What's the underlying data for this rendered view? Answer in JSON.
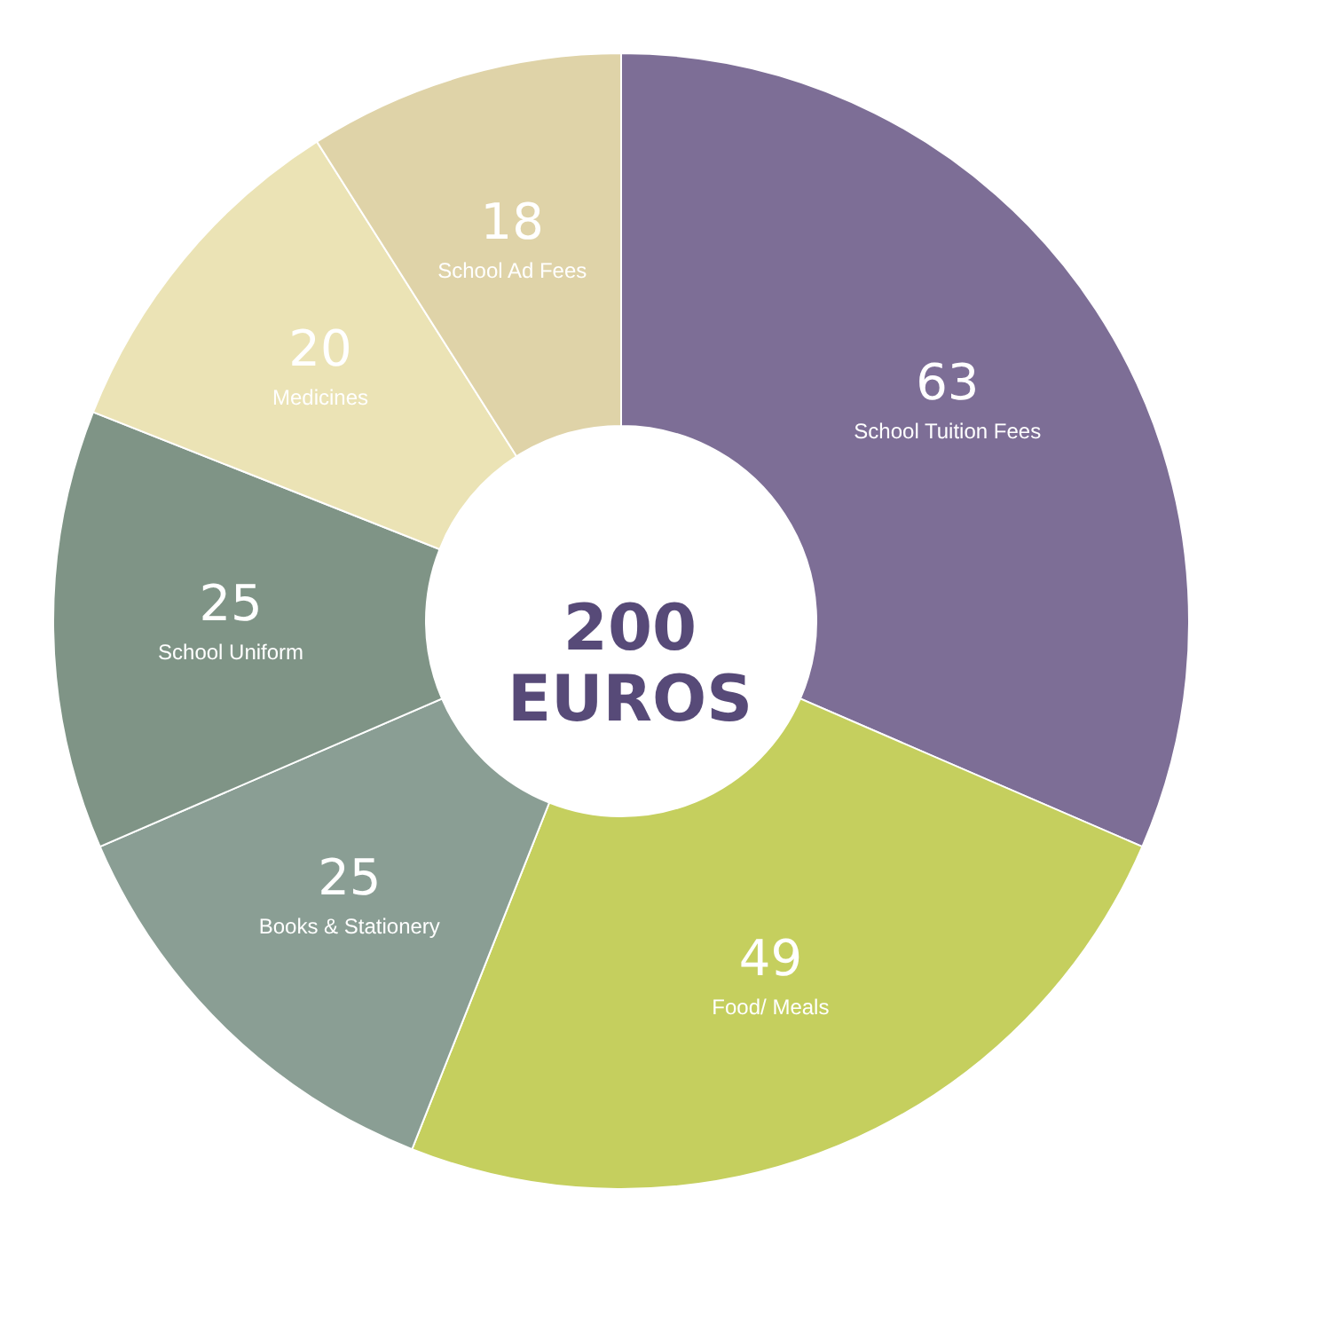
{
  "chart_data": {
    "type": "donut",
    "title": "200 EUROS",
    "categories": [
      "School Tuition Fees",
      "Food/ Meals",
      "Books & Stationery",
      "School Uniform",
      "Medicines",
      "School Ad Fees"
    ],
    "values": [
      63,
      49,
      25,
      25,
      20,
      18
    ],
    "colors": [
      "#7d6e96",
      "#c5cf5e",
      "#8a9e94",
      "#7f9486",
      "#ebe3b5",
      "#dfd3a8"
    ],
    "data_labels": true,
    "legend": false
  }
}
